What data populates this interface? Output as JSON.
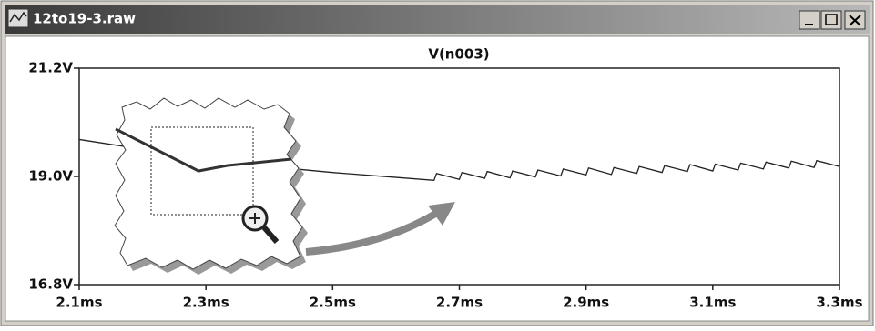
{
  "window": {
    "title": "12to19-3.raw"
  },
  "chart_data": {
    "type": "line",
    "x": [
      2.1,
      2.2,
      2.3,
      2.4,
      2.5,
      2.6,
      2.66,
      2.664,
      2.7,
      2.704,
      2.74,
      2.744,
      2.78,
      2.784,
      2.82,
      2.824,
      2.86,
      2.864,
      2.9,
      2.904,
      2.94,
      2.944,
      2.98,
      2.984,
      3.02,
      3.024,
      3.06,
      3.064,
      3.1,
      3.104,
      3.14,
      3.144,
      3.18,
      3.184,
      3.22,
      3.224,
      3.26,
      3.264,
      3.3
    ],
    "series": [
      {
        "name": "V(n003)",
        "color": "#222222",
        "values": [
          19.75,
          19.55,
          19.35,
          19.2,
          19.08,
          18.98,
          18.92,
          19.06,
          18.94,
          19.08,
          18.96,
          19.1,
          18.97,
          19.11,
          18.99,
          19.13,
          19.01,
          19.15,
          19.03,
          19.17,
          19.04,
          19.18,
          19.06,
          19.2,
          19.08,
          19.22,
          19.1,
          19.24,
          19.11,
          19.25,
          19.13,
          19.27,
          19.15,
          19.29,
          19.17,
          19.31,
          19.18,
          19.32,
          19.2
        ]
      }
    ],
    "xlim": [
      2.1,
      3.3
    ],
    "xticks": [
      {
        "value": 2.1,
        "label": "2.1ms"
      },
      {
        "value": 2.3,
        "label": "2.3ms"
      },
      {
        "value": 2.5,
        "label": "2.5ms"
      },
      {
        "value": 2.7,
        "label": "2.7ms"
      },
      {
        "value": 2.9,
        "label": "2.9ms"
      },
      {
        "value": 3.1,
        "label": "3.1ms"
      },
      {
        "value": 3.3,
        "label": "3.3ms"
      }
    ],
    "ylim": [
      16.8,
      21.2
    ],
    "yticks": [
      {
        "value": 16.8,
        "label": "16.8V"
      },
      {
        "value": 19.0,
        "label": "19.0V"
      },
      {
        "value": 21.2,
        "label": "21.2V"
      }
    ]
  }
}
